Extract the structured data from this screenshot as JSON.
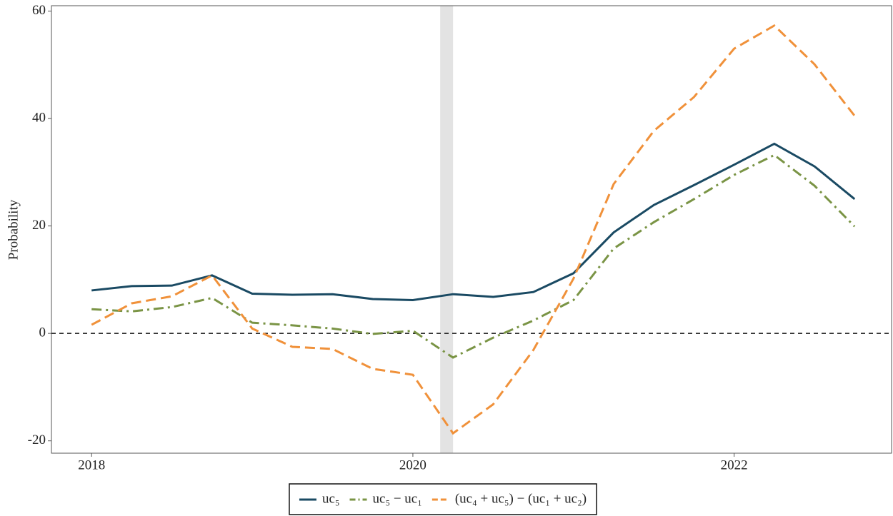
{
  "chart_data": {
    "type": "line",
    "y_label": "Probability",
    "x": [
      2018,
      2018.25,
      2018.5,
      2018.75,
      2019,
      2019.25,
      2019.5,
      2019.75,
      2020,
      2020.25,
      2020.5,
      2020.75,
      2021,
      2021.25,
      2021.5,
      2021.75,
      2022,
      2022.25,
      2022.5,
      2022.75
    ],
    "series": [
      {
        "name": "uc₅",
        "color": "#1a4a63",
        "dash": "solid",
        "values": [
          8.0,
          8.8,
          8.9,
          10.8,
          7.4,
          7.2,
          7.3,
          6.4,
          6.2,
          7.3,
          6.8,
          7.7,
          11.2,
          18.8,
          23.9,
          27.6,
          31.4,
          35.3,
          31.1,
          25.0
        ]
      },
      {
        "name": "uc₅ − uc₁",
        "color": "#7a9445",
        "dash": "dashdot",
        "values": [
          4.5,
          4.1,
          4.9,
          6.6,
          2.0,
          1.5,
          0.9,
          -0.1,
          0.5,
          -4.5,
          -0.8,
          2.4,
          6.2,
          15.8,
          20.7,
          25.0,
          29.5,
          33.2,
          27.5,
          19.9
        ]
      },
      {
        "name": "(uc₄ + uc₅) − (uc₁ + uc₂)",
        "color": "#f0913a",
        "dash": "dashed",
        "values": [
          1.6,
          5.6,
          6.9,
          10.8,
          0.9,
          -2.5,
          -2.9,
          -6.6,
          -7.7,
          -18.6,
          -13.2,
          -3.1,
          10.2,
          27.8,
          37.7,
          44.0,
          53.0,
          57.3,
          50.1,
          40.5
        ]
      }
    ],
    "shaded_region": [
      2020.17,
      2020.25
    ],
    "hline": 0,
    "xlim": [
      2017.75,
      2022.98
    ],
    "ylim": [
      -22.3,
      61
    ],
    "xticks": [
      2018,
      2020,
      2022
    ],
    "yticks": [
      -20,
      0,
      20,
      40,
      60
    ],
    "legend": "bottom"
  }
}
